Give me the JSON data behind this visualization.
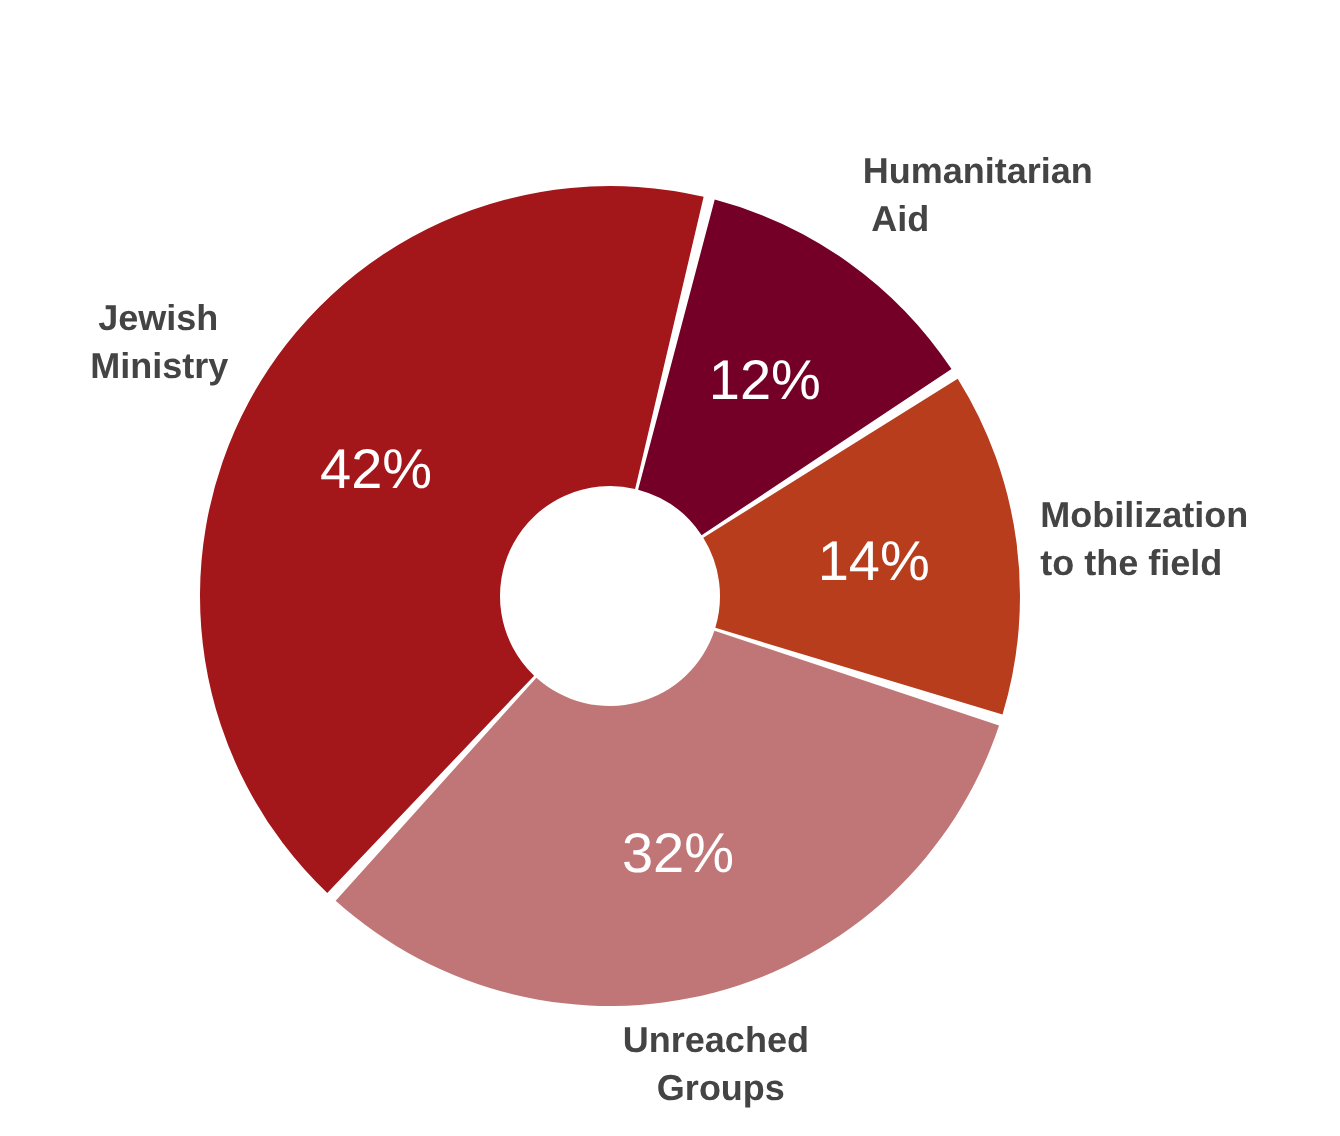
{
  "chart_data": {
    "type": "donut",
    "categories": [
      "Humanitarian Aid",
      "Mobilization to the field",
      "Unreached Groups",
      "Jewish Ministry"
    ],
    "values": [
      12,
      14,
      32,
      42
    ],
    "colors": [
      "#740028",
      "#b83d1d",
      "#c07676",
      "#a3161a"
    ],
    "value_labels": [
      "12%",
      "14%",
      "32%",
      "42%"
    ]
  }
}
